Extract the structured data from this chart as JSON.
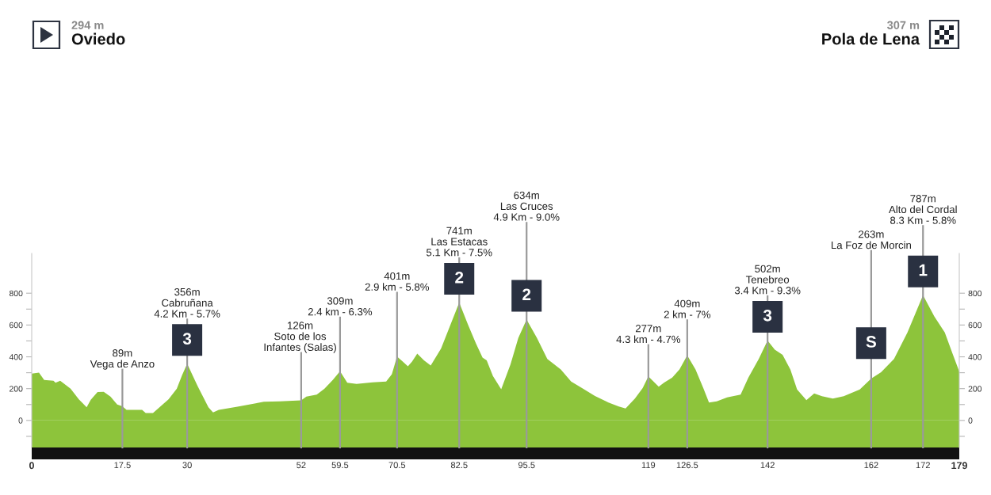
{
  "chart_data": {
    "type": "area",
    "color": "#8dc43b",
    "x": [
      0,
      1.4,
      2.4,
      4.2,
      4.6,
      5.5,
      7.5,
      9.1,
      10.6,
      11.4,
      12.7,
      13.9,
      15.2,
      16.5,
      17.5,
      18.3,
      21.3,
      22,
      23.4,
      24.4,
      26.4,
      28,
      29,
      30,
      32,
      34.1,
      35,
      36.1,
      39.7,
      44.8,
      47.9,
      52,
      53,
      55,
      56.5,
      58.1,
      59.5,
      60.9,
      62.7,
      65.8,
      68.4,
      69.5,
      70.5,
      71.6,
      72.6,
      73.4,
      74.4,
      75.7,
      77,
      79,
      80.6,
      82.5,
      84.2,
      85.7,
      87,
      87.8,
      89,
      90.6,
      92.4,
      93.9,
      95.5,
      97.5,
      99.5,
      102.1,
      104.1,
      106.2,
      108.7,
      111.3,
      113.3,
      114.6,
      116.4,
      117.9,
      119,
      121,
      122,
      123.6,
      125,
      126.5,
      128.1,
      129.6,
      130.7,
      132.2,
      134.2,
      136.8,
      138.3,
      140.3,
      142,
      143.4,
      144.9,
      146.4,
      147.7,
      149.5,
      151,
      152.5,
      154.6,
      156.7,
      159.8,
      162,
      163.9,
      166.4,
      169,
      170.5,
      172,
      174.2,
      176.2,
      177.7,
      179
    ],
    "values": [
      294,
      300,
      255,
      250,
      237,
      250,
      200,
      133,
      83,
      130,
      178,
      180,
      150,
      100,
      89,
      67,
      67,
      47,
      47,
      75,
      133,
      200,
      283,
      356,
      217,
      83,
      50,
      67,
      87,
      117,
      120,
      126,
      150,
      162,
      200,
      254,
      309,
      237,
      229,
      240,
      245,
      290,
      401,
      370,
      340,
      370,
      420,
      378,
      345,
      453,
      585,
      741,
      602,
      486,
      395,
      378,
      279,
      196,
      353,
      519,
      634,
      519,
      386,
      320,
      245,
      204,
      154,
      113,
      88,
      75,
      138,
      204,
      277,
      212,
      237,
      270,
      320,
      409,
      320,
      203,
      112,
      120,
      145,
      162,
      270,
      387,
      502,
      445,
      412,
      320,
      195,
      128,
      170,
      153,
      137,
      153,
      195,
      263,
      303,
      387,
      553,
      670,
      787,
      653,
      553,
      420,
      307
    ],
    "xlim": [
      0,
      179
    ],
    "ylim": [
      -170,
      1050
    ],
    "xticks": [
      0,
      17.5,
      30,
      52,
      59.5,
      70.5,
      82.5,
      95.5,
      119,
      126.5,
      142,
      162,
      172,
      179
    ],
    "yticks": [
      {
        "value": -100,
        "label": null
      },
      0,
      {
        "value": 100,
        "label": null
      },
      200,
      {
        "value": 300,
        "label": null
      },
      400,
      {
        "value": 500,
        "label": null
      },
      600,
      {
        "value": 700,
        "label": null
      },
      800
    ],
    "y2lim": [
      -170,
      1050
    ],
    "y2ticks": [
      {
        "value": -100,
        "label": null
      },
      0,
      {
        "value": 100,
        "label": null
      },
      200,
      {
        "value": 300,
        "label": null
      },
      400,
      {
        "value": 500,
        "label": null
      },
      600,
      {
        "value": 700,
        "label": null
      },
      800
    ],
    "bands": [
      {
        "axis": "y",
        "from": -170,
        "to": 0,
        "color": "#8dc43b"
      }
    ],
    "ref_lines": [
      {
        "axis": "x",
        "value": 17.5,
        "label": "89m\nVega de Anzo",
        "color": "#9a9a9a"
      },
      {
        "axis": "x",
        "value": 30,
        "label": "356m\nCabruñana\n4.2 Km - 5.7%",
        "color": "#9a9a9a"
      },
      {
        "axis": "x",
        "value": 52,
        "label": "126m\nSoto de los\nInfantes (Salas)",
        "color": "#9a9a9a"
      },
      {
        "axis": "x",
        "value": 59.5,
        "label": "309m\n2.4 km - 6.3%",
        "color": "#9a9a9a"
      },
      {
        "axis": "x",
        "value": 70.5,
        "label": "401m\n2.9 km - 5.8%",
        "color": "#9a9a9a"
      },
      {
        "axis": "x",
        "value": 82.5,
        "label": "741m\nLas Estacas\n5.1 Km - 7.5%",
        "color": "#9a9a9a"
      },
      {
        "axis": "x",
        "value": 95.5,
        "label": "634m\nLas Cruces\n4.9 Km - 9.0%",
        "color": "#9a9a9a"
      },
      {
        "axis": "x",
        "value": 119,
        "label": "277m\n4.3 km - 4.7%",
        "color": "#9a9a9a"
      },
      {
        "axis": "x",
        "value": 126.5,
        "label": "409m\n2 km - 7%",
        "color": "#9a9a9a"
      },
      {
        "axis": "x",
        "value": 142,
        "label": "502m\nTenebreo\n3.4 Km - 9.3%",
        "color": "#9a9a9a"
      },
      {
        "axis": "x",
        "value": 162,
        "label": "263m\nLa Foz de Morcin",
        "color": "#9a9a9a"
      },
      {
        "axis": "x",
        "value": 172,
        "label": "787m\nAlto del Cordal\n8.3 Km - 5.8%",
        "color": "#9a9a9a"
      }
    ],
    "annotations": [
      "294 m",
      "Oviedo",
      "307 m",
      "Pola de Lena",
      {
        "text": "3",
        "x": 30,
        "y": 356
      },
      {
        "text": "2",
        "x": 82.5,
        "y": 741
      },
      {
        "text": "2",
        "x": 95.5,
        "y": 634
      },
      {
        "text": "3",
        "x": 142,
        "y": 502
      },
      {
        "text": "S",
        "x": 162,
        "y": 263
      },
      {
        "text": "1",
        "x": 172,
        "y": 787
      }
    ]
  }
}
